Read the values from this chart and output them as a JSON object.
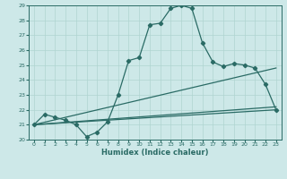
{
  "xlabel": "Humidex (Indice chaleur)",
  "bg_color": "#cde8e8",
  "line_color": "#2a6b65",
  "grid_color": "#afd4d0",
  "xlim": [
    -0.5,
    23.5
  ],
  "ylim": [
    20,
    29
  ],
  "xticks": [
    0,
    1,
    2,
    3,
    4,
    5,
    6,
    7,
    8,
    9,
    10,
    11,
    12,
    13,
    14,
    15,
    16,
    17,
    18,
    19,
    20,
    21,
    22,
    23
  ],
  "yticks": [
    20,
    21,
    22,
    23,
    24,
    25,
    26,
    27,
    28,
    29
  ],
  "curve1_x": [
    0,
    1,
    2,
    3,
    4,
    5,
    6,
    7,
    8,
    9,
    10,
    11,
    12,
    13,
    14,
    15,
    16,
    17,
    18,
    19,
    20,
    21,
    22,
    23
  ],
  "curve1_y": [
    21.0,
    21.7,
    21.5,
    21.3,
    21.0,
    20.2,
    20.5,
    21.2,
    23.0,
    25.3,
    25.5,
    27.7,
    27.8,
    28.8,
    29.0,
    28.8,
    26.5,
    25.2,
    24.9,
    25.1,
    25.0,
    24.8,
    23.7,
    22.0
  ],
  "curve2_x": [
    0,
    23
  ],
  "curve2_y": [
    21.0,
    24.8
  ],
  "curve3_x": [
    0,
    23
  ],
  "curve3_y": [
    21.0,
    22.0
  ],
  "curve4_x": [
    0,
    23
  ],
  "curve4_y": [
    21.0,
    22.2
  ]
}
